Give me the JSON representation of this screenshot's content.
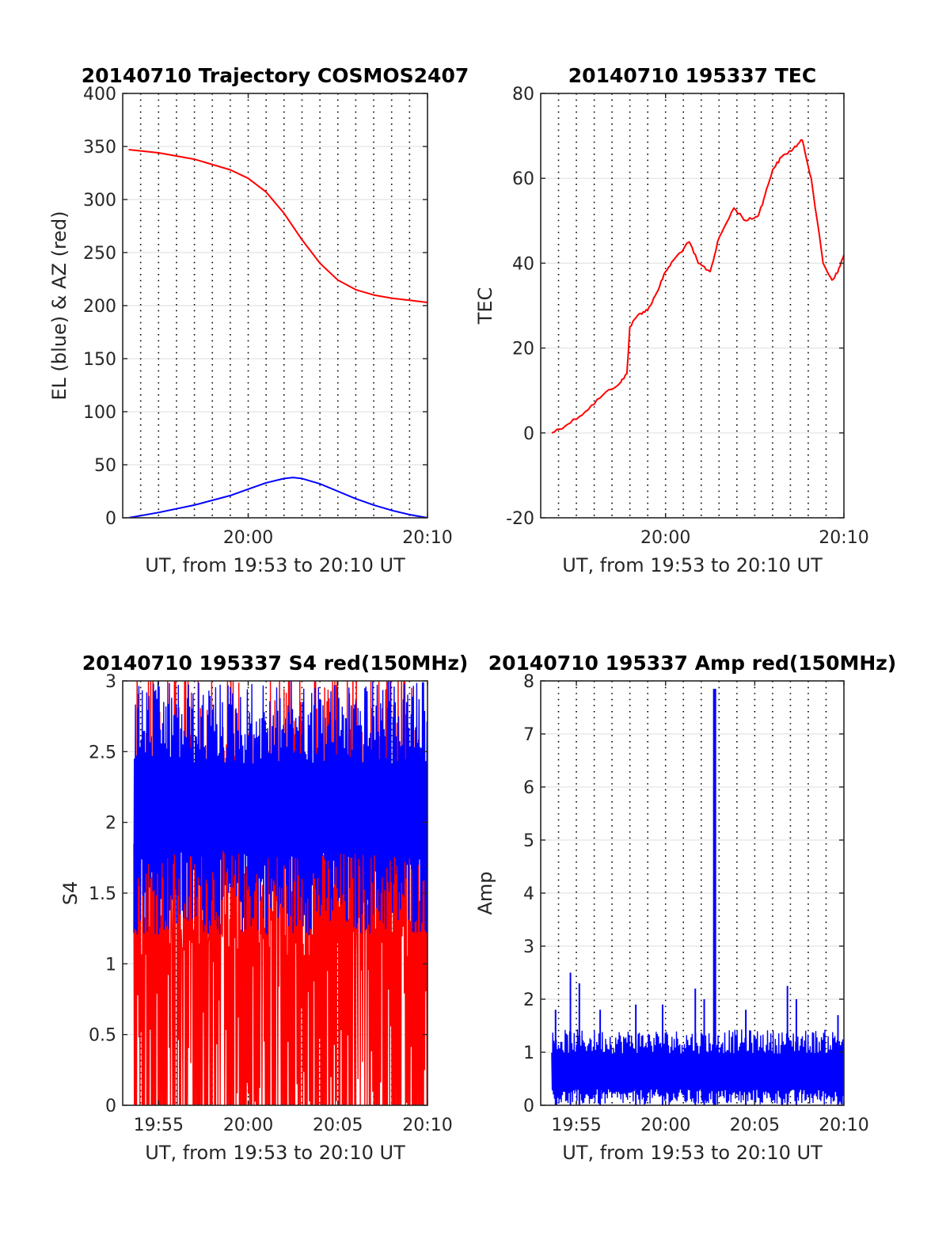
{
  "chart_data": [
    {
      "type": "line",
      "title": "20140710 Trajectory COSMOS2407",
      "xlabel": "UT, from 19:53 to 20:10 UT",
      "ylabel": "EL (blue) & AZ (red)",
      "xlim": [
        "19:53",
        "20:10"
      ],
      "ylim": [
        0,
        400
      ],
      "xticks": [
        "20:00",
        "20:10"
      ],
      "yticks": [
        "0",
        "50",
        "100",
        "150",
        "200",
        "250",
        "300",
        "350",
        "400"
      ],
      "grid": true,
      "series": [
        {
          "color": "#ff0000",
          "x": [
            "19:53:20",
            "19:55",
            "19:57",
            "19:59",
            "20:00",
            "20:01",
            "20:02",
            "20:03",
            "20:04",
            "20:05",
            "20:06",
            "20:07",
            "20:08",
            "20:09",
            "20:10"
          ],
          "y": [
            347,
            344,
            338,
            328,
            320,
            307,
            287,
            262,
            240,
            224,
            215,
            210,
            207,
            205,
            203
          ]
        },
        {
          "color": "#0000ff",
          "x": [
            "19:53:20",
            "19:55",
            "19:57",
            "19:59",
            "20:00",
            "20:01",
            "20:02",
            "20:02:30",
            "20:03",
            "20:04",
            "20:05",
            "20:06",
            "20:07",
            "20:08",
            "20:09",
            "20:10"
          ],
          "y": [
            0,
            5,
            12,
            21,
            27,
            33,
            37,
            38,
            37,
            32,
            25,
            18,
            12,
            7,
            3,
            0
          ]
        }
      ]
    },
    {
      "type": "line",
      "title": "20140710 195337 TEC",
      "xlabel": "UT, from 19:53 to 20:10 UT",
      "ylabel": "TEC",
      "xlim": [
        "19:53",
        "20:10"
      ],
      "ylim": [
        -20,
        80
      ],
      "xticks": [
        "20:00",
        "20:10"
      ],
      "yticks": [
        "-20",
        "0",
        "20",
        "40",
        "60",
        "80"
      ],
      "grid": true,
      "series": [
        {
          "color": "#ff0000",
          "x": [
            "19:53:37",
            "19:54:30",
            "19:55:30",
            "19:56:30",
            "19:57:30",
            "19:57:50",
            "19:58:00",
            "19:58:30",
            "19:59:00",
            "19:59:30",
            "20:00:00",
            "20:00:30",
            "20:01:20",
            "20:01:50",
            "20:02:30",
            "20:03:00",
            "20:03:50",
            "20:04:30",
            "20:05:10",
            "20:05:30",
            "20:06:00",
            "20:06:30",
            "20:07:10",
            "20:07:40",
            "20:08:10",
            "20:08:50",
            "20:09:20",
            "20:09:40",
            "20:10:00"
          ],
          "y": [
            0,
            2,
            5,
            9,
            12,
            14,
            25,
            28,
            29,
            33,
            38,
            41,
            45,
            40,
            38,
            46,
            53,
            50,
            51,
            55,
            62,
            65,
            67,
            69,
            60,
            40,
            36,
            38,
            42
          ]
        }
      ]
    },
    {
      "type": "line",
      "title": "20140710 195337 S4 red(150MHz)",
      "xlabel": "UT, from 19:53 to 20:10 UT",
      "ylabel": "S4",
      "xlim": [
        "19:53",
        "20:10"
      ],
      "ylim": [
        0,
        3
      ],
      "xticks": [
        "19:55",
        "20:00",
        "20:05",
        "20:10"
      ],
      "yticks": [
        "0",
        "0.5",
        "1",
        "1.5",
        "2",
        "2.5",
        "3"
      ],
      "grid": true,
      "series": [
        {
          "color": "#ff0000",
          "x_range": [
            "19:53:37",
            "20:10"
          ],
          "baseline": 0,
          "typical_max": 3
        },
        {
          "color": "#0000ff",
          "x_range": [
            "19:53:37",
            "20:10"
          ],
          "typical_min": 1.2,
          "typical_max": 3
        }
      ]
    },
    {
      "type": "line",
      "title": "20140710 195337 Amp red(150MHz)",
      "xlabel": "UT, from 19:53 to 20:10 UT",
      "ylabel": "Amp",
      "xlim": [
        "19:53",
        "20:10"
      ],
      "ylim": [
        0,
        8
      ],
      "xticks": [
        "19:55",
        "20:00",
        "20:05",
        "20:10"
      ],
      "yticks": [
        "0",
        "1",
        "2",
        "3",
        "4",
        "5",
        "6",
        "7",
        "8"
      ],
      "grid": true,
      "series": [
        {
          "color": "#0000ff",
          "x_range": [
            "19:53:37",
            "20:10"
          ],
          "typical_max": 1.3,
          "peaks": [
            {
              "x": "19:53:50",
              "y": 1.8
            },
            {
              "x": "19:54:40",
              "y": 2.5
            },
            {
              "x": "19:55:10",
              "y": 2.3
            },
            {
              "x": "19:56:20",
              "y": 1.8
            },
            {
              "x": "19:58:20",
              "y": 1.9
            },
            {
              "x": "19:59:50",
              "y": 1.9
            },
            {
              "x": "20:01:40",
              "y": 2.2
            },
            {
              "x": "20:02:10",
              "y": 2.0
            },
            {
              "x": "20:02:45",
              "y": 7.85
            },
            {
              "x": "20:04:30",
              "y": 1.8
            },
            {
              "x": "20:06:50",
              "y": 2.25
            },
            {
              "x": "20:07:20",
              "y": 2.0
            },
            {
              "x": "20:09:40",
              "y": 1.7
            }
          ]
        }
      ]
    }
  ]
}
